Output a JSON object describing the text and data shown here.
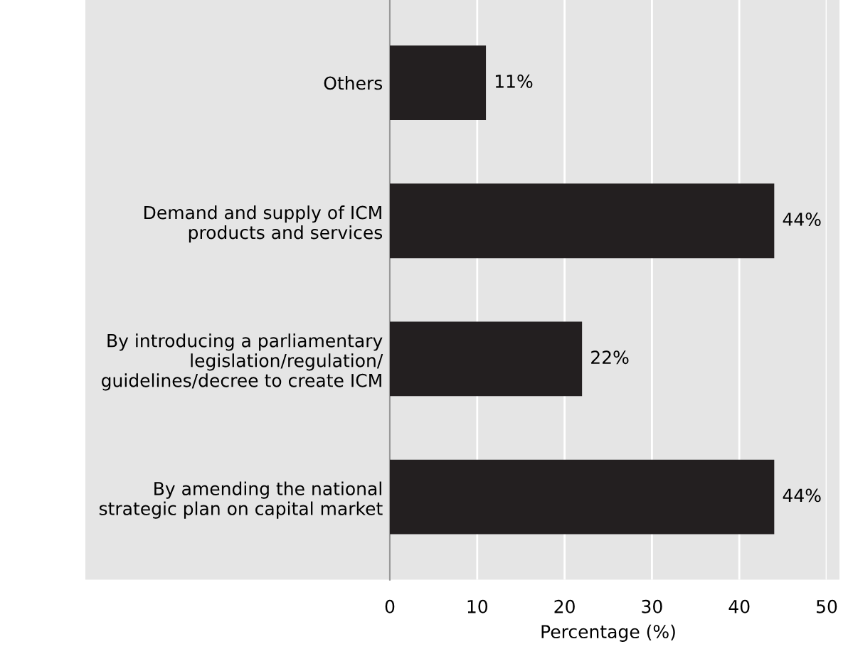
{
  "chart_data": {
    "type": "bar",
    "orientation": "horizontal",
    "xlabel": "Percentage (%)",
    "categories": [
      "Others",
      "Demand and supply of ICM\nproducts and services",
      "By introducing a parliamentary\nlegislation/regulation/\nguidelines/decree to create ICM",
      "By amending the national\nstrategic plan on capital market"
    ],
    "values": [
      11,
      44,
      22,
      44
    ],
    "value_labels": [
      "11%",
      "44%",
      "22%",
      "44%"
    ],
    "color": "#231f20",
    "xlim": [
      0,
      50
    ],
    "xticks": [
      0,
      10,
      20,
      30,
      40,
      50
    ],
    "grid": "x"
  }
}
